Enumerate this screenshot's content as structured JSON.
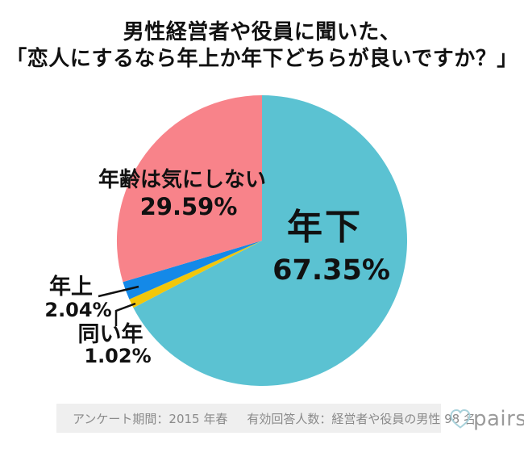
{
  "title": {
    "line1": "男性経営者や役員に聞いた、",
    "line2": "「恋人にするなら年上か年下どちらが良いですか？」"
  },
  "chart_data": {
    "type": "pie",
    "title": "男性経営者や役員に聞いた、「恋人にするなら年上か年下どちらが良いですか？」",
    "unit": "%",
    "start_angle_deg": 0,
    "direction": "clockwise",
    "legend_position": "none",
    "slices": [
      {
        "label": "年下",
        "value": 67.35,
        "color": "#5BC2D2"
      },
      {
        "label": "同い年",
        "value": 1.02,
        "color": "#F2C70A"
      },
      {
        "label": "年上",
        "value": 2.04,
        "color": "#1489E8"
      },
      {
        "label": "年齢は気にしない",
        "value": 29.59,
        "color": "#F8838A"
      }
    ]
  },
  "labels": {
    "younger": {
      "name": "年下",
      "pct": "67.35%"
    },
    "no_care": {
      "name": "年齢は気にしない",
      "pct": "29.59%"
    },
    "older": {
      "name": "年上",
      "pct": "2.04%"
    },
    "same": {
      "name": "同い年",
      "pct": "1.02%"
    }
  },
  "footer": {
    "survey_period": "アンケート期間：2015 年春",
    "respondents": "有効回答人数：経営者や役員の男性 98 名",
    "logo_text": "pairs"
  },
  "colors": {
    "slice_younger": "#5BC2D2",
    "slice_same_age": "#F2C70A",
    "slice_older": "#1489E8",
    "slice_no_care": "#F8838A",
    "title_text": "#111111",
    "footer_bar_bg": "#EFEFEF",
    "footer_text": "#8A8A8A",
    "logo_text": "#9B9B9B",
    "logo_heart": "#A9D2DB"
  }
}
